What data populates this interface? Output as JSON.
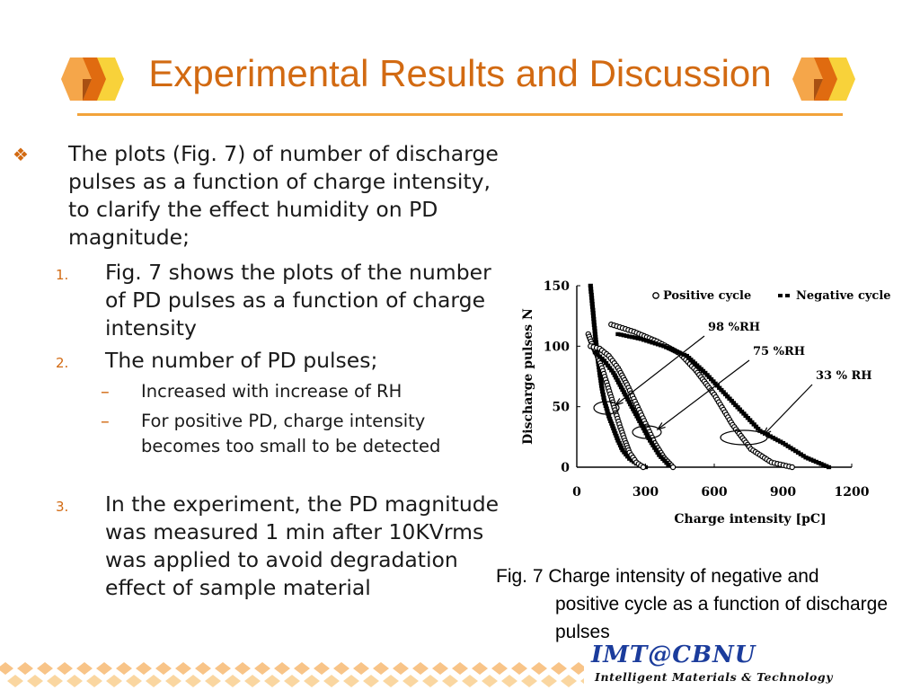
{
  "slide": {
    "title": "Experimental Results and Discussion"
  },
  "body": {
    "intro": "The plots (Fig. 7) of number of discharge pulses as a function of charge intensity, to clarify the effect humidity on PD magnitude;",
    "items": [
      {
        "num": "1.",
        "text": "Fig. 7 shows the plots of the number of PD pulses as a function of charge intensity"
      },
      {
        "num": "2.",
        "text": "The number of PD pulses;"
      },
      {
        "num": "3.",
        "text": "In the experiment, the PD magnitude was measured 1 min after 10KVrms was applied to avoid degradation effect of sample material"
      }
    ],
    "subitems": [
      {
        "dash": "–",
        "text": "Increased with increase of RH"
      },
      {
        "dash": "–",
        "text": "For positive PD, charge intensity becomes too small to be detected"
      }
    ]
  },
  "figure": {
    "caption_line1": "Fig. 7 Charge intensity of negative and",
    "caption_rest": "positive cycle as a function of discharge pulses"
  },
  "chart_data": {
    "type": "scatter",
    "xlabel": "Charge intensity [pC]",
    "ylabel": "Discharge pulses N",
    "xlim": [
      0,
      1200
    ],
    "ylim": [
      0,
      150
    ],
    "xticks": [
      "0",
      "300",
      "600",
      "900",
      "1200"
    ],
    "yticks": [
      "0",
      "50",
      "100",
      "150"
    ],
    "legend": [
      {
        "symbol": "o",
        "label": "Positive cycle"
      },
      {
        "symbol": "--",
        "label": "Negative cycle"
      }
    ],
    "annotations": [
      "98 %RH",
      "75 %RH",
      "33 % RH"
    ],
    "series": [
      {
        "name": "98 %RH",
        "style": "negative",
        "x": [
          60,
          70,
          80,
          90,
          100,
          110,
          120,
          140,
          160,
          180,
          200,
          230,
          260,
          300
        ],
        "y": [
          150,
          130,
          110,
          92,
          78,
          65,
          55,
          42,
          32,
          22,
          14,
          7,
          3,
          0
        ]
      },
      {
        "name": "98 %RH",
        "style": "positive",
        "x": [
          50,
          70,
          90,
          110,
          130,
          150,
          170,
          190,
          210,
          230,
          260,
          290
        ],
        "y": [
          110,
          100,
          92,
          82,
          70,
          58,
          45,
          33,
          22,
          12,
          4,
          0
        ]
      },
      {
        "name": "75 %RH",
        "style": "positive",
        "x": [
          60,
          100,
          140,
          180,
          220,
          260,
          300,
          340,
          380,
          420
        ],
        "y": [
          100,
          98,
          92,
          82,
          68,
          52,
          36,
          20,
          8,
          0
        ]
      },
      {
        "name": "75 %RH",
        "style": "negative",
        "x": [
          80,
          120,
          160,
          200,
          240,
          280,
          320,
          360,
          400
        ],
        "y": [
          95,
          88,
          78,
          64,
          50,
          36,
          22,
          10,
          2
        ]
      },
      {
        "name": "33 % RH",
        "style": "positive",
        "x": [
          150,
          250,
          350,
          450,
          520,
          600,
          680,
          760,
          850,
          940
        ],
        "y": [
          118,
          112,
          104,
          94,
          80,
          60,
          35,
          15,
          4,
          0
        ]
      },
      {
        "name": "33 % RH",
        "style": "negative",
        "x": [
          180,
          280,
          380,
          480,
          560,
          640,
          720,
          800,
          900,
          1000,
          1100
        ],
        "y": [
          110,
          106,
          100,
          92,
          78,
          62,
          46,
          30,
          20,
          8,
          0
        ]
      }
    ]
  },
  "logo": {
    "main_left": "IMT",
    "main_at": "@",
    "main_right": "CBNU",
    "sub": "Intelligent Materials & Technology"
  },
  "colors": {
    "accent": "#d26a12",
    "rule": "#f2a33a"
  }
}
